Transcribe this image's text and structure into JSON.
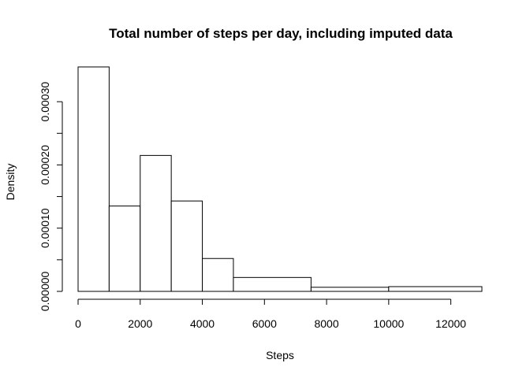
{
  "chart_data": {
    "type": "bar",
    "title": "Total number of steps per day, including imputed data",
    "xlabel": "Steps",
    "ylabel": "Density",
    "xlim": [
      0,
      13000
    ],
    "ylim": [
      0,
      0.00035
    ],
    "x_ticks": [
      0,
      2000,
      4000,
      6000,
      8000,
      10000,
      12000
    ],
    "x_tick_labels": [
      "0",
      "2000",
      "4000",
      "6000",
      "8000",
      "10000",
      "12000"
    ],
    "y_ticks": [
      0,
      0.0001,
      0.0002,
      0.0003
    ],
    "y_tick_labels": [
      "0.00000",
      "0.00010",
      "0.00020",
      "0.00030"
    ],
    "y_minor_ticks": [
      5e-05,
      0.00015,
      0.00025
    ],
    "grid": false,
    "legend": "none",
    "bins": [
      {
        "start": 0,
        "end": 1000,
        "density": 0.000355
      },
      {
        "start": 1000,
        "end": 2000,
        "density": 0.000135
      },
      {
        "start": 2000,
        "end": 3000,
        "density": 0.000215
      },
      {
        "start": 3000,
        "end": 4000,
        "density": 0.000143
      },
      {
        "start": 4000,
        "end": 5000,
        "density": 5.2e-05
      },
      {
        "start": 5000,
        "end": 7500,
        "density": 2.2e-05
      },
      {
        "start": 7500,
        "end": 10000,
        "density": 6.5e-06
      },
      {
        "start": 10000,
        "end": 13000,
        "density": 7.5e-06
      }
    ],
    "colors": {
      "bar_fill": "#ffffff",
      "bar_stroke": "#000000",
      "axis": "#000000",
      "text": "#000000"
    }
  }
}
